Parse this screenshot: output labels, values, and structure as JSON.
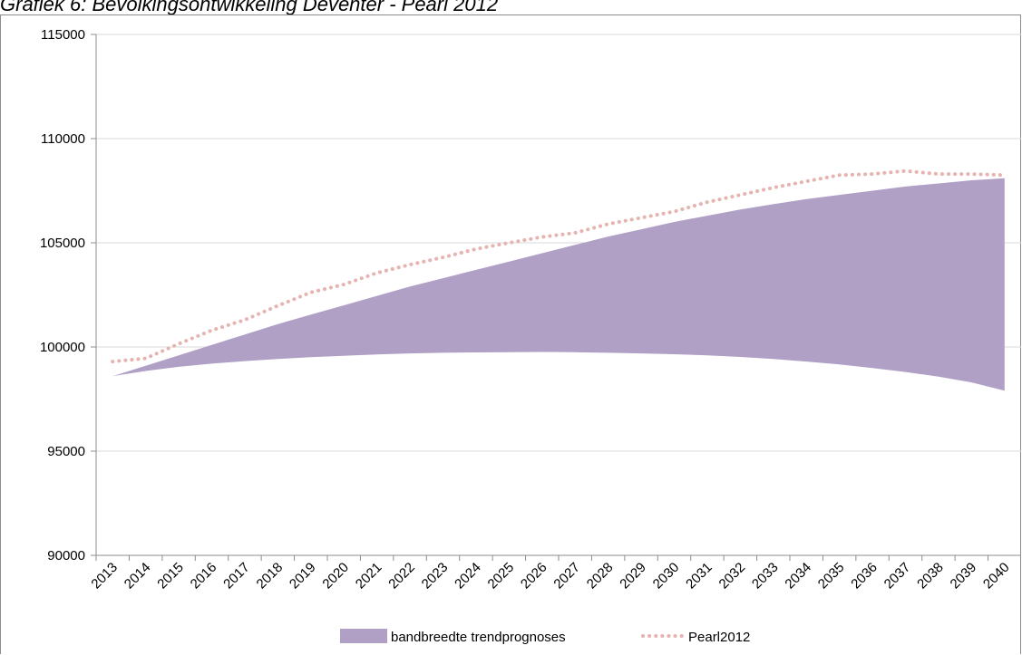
{
  "title": "Grafiek 6: Bevolkingsontwikkeling Deventer - Pearl 2012",
  "colors": {
    "band": "#b0a0c6",
    "pearl": "#e6b4b0",
    "grid": "#d9d9d9",
    "axis": "#8c8c8c"
  },
  "chart_data": {
    "type": "area",
    "categories": [
      "2013",
      "2014",
      "2015",
      "2016",
      "2017",
      "2018",
      "2019",
      "2020",
      "2021",
      "2022",
      "2023",
      "2024",
      "2025",
      "2026",
      "2027",
      "2028",
      "2029",
      "2030",
      "2031",
      "2032",
      "2033",
      "2034",
      "2035",
      "2036",
      "2037",
      "2038",
      "2039",
      "2040"
    ],
    "ylim": [
      90000,
      115000
    ],
    "yticks": [
      "115000",
      "110000",
      "105000",
      "100000",
      "95000",
      "90000"
    ],
    "ytick_values": [
      115000,
      110000,
      105000,
      100000,
      95000,
      90000
    ],
    "grid": true,
    "legend_position": "bottom",
    "series": [
      {
        "name": "bandbreedte trendprognoses",
        "kind": "band",
        "upper": [
          98600,
          99100,
          99600,
          100100,
          100600,
          101100,
          101550,
          102000,
          102450,
          102900,
          103300,
          103700,
          104100,
          104500,
          104900,
          105300,
          105650,
          106000,
          106300,
          106600,
          106850,
          107100,
          107300,
          107500,
          107700,
          107850,
          108000,
          108100
        ],
        "lower": [
          98600,
          98850,
          99050,
          99200,
          99320,
          99420,
          99510,
          99580,
          99640,
          99690,
          99720,
          99740,
          99750,
          99760,
          99750,
          99720,
          99690,
          99650,
          99600,
          99520,
          99420,
          99300,
          99160,
          98990,
          98800,
          98580,
          98300,
          97900
        ]
      },
      {
        "name": "Pearl2012",
        "kind": "dotted-line",
        "values": [
          99300,
          99450,
          100150,
          100800,
          101300,
          101980,
          102620,
          103000,
          103550,
          103950,
          104300,
          104700,
          105000,
          105280,
          105480,
          105900,
          106200,
          106500,
          106950,
          107300,
          107650,
          107950,
          108250,
          108300,
          108450,
          108300,
          108300,
          108250
        ]
      }
    ]
  }
}
